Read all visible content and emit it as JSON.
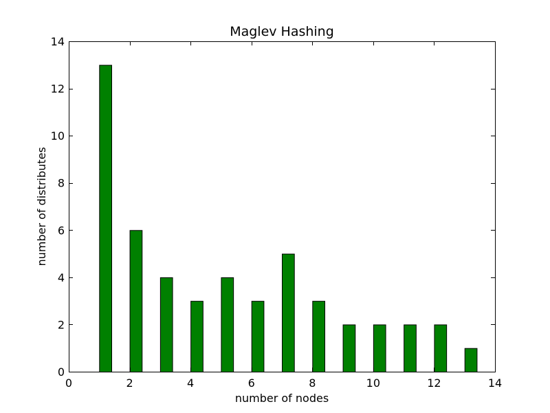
{
  "chart_data": {
    "type": "bar",
    "title": "Maglev Hashing",
    "xlabel": "number of nodes",
    "ylabel": "number of distributes",
    "x": [
      1,
      2,
      3,
      4,
      5,
      6,
      7,
      8,
      9,
      10,
      11,
      12,
      13
    ],
    "values": [
      13,
      6,
      4,
      3,
      4,
      3,
      5,
      3,
      2,
      2,
      2,
      2,
      1
    ],
    "bar_width": 0.4,
    "xlim": [
      0,
      14
    ],
    "ylim": [
      0,
      14
    ],
    "xticks": [
      0,
      2,
      4,
      6,
      8,
      10,
      12,
      14
    ],
    "yticks": [
      0,
      2,
      4,
      6,
      8,
      10,
      12,
      14
    ],
    "bar_color": "#008000",
    "grid": false,
    "legend": "none"
  }
}
